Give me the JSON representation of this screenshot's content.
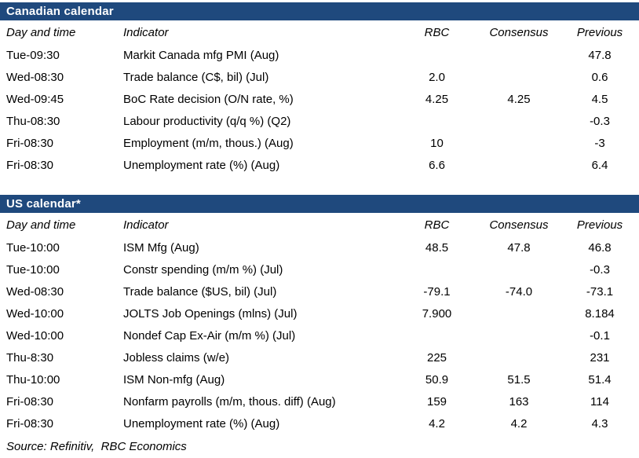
{
  "page": {
    "header_bar_color": "#1f497d",
    "header_bar_text_color": "#ffffff",
    "body_text_color": "#000000",
    "background_color": "#ffffff"
  },
  "sections": [
    {
      "id": "canadian",
      "title": "Canadian calendar",
      "columns": [
        "Day and time",
        "Indicator",
        "RBC",
        "Consensus",
        "Previous"
      ],
      "rows": [
        [
          "Tue-09:30",
          "Markit Canada mfg PMI (Aug)",
          "",
          "",
          "47.8"
        ],
        [
          "Wed-08:30",
          "Trade balance (C$, bil) (Jul)",
          "2.0",
          "",
          "0.6"
        ],
        [
          "Wed-09:45",
          "BoC Rate decision (O/N rate, %)",
          "4.25",
          "4.25",
          "4.5"
        ],
        [
          "Thu-08:30",
          "Labour productivity (q/q %) (Q2)",
          "",
          "",
          "-0.3"
        ],
        [
          "Fri-08:30",
          "Employment (m/m, thous.) (Aug)",
          "10",
          "",
          "-3"
        ],
        [
          "Fri-08:30",
          "Unemployment rate (%) (Aug)",
          "6.6",
          "",
          "6.4"
        ]
      ]
    },
    {
      "id": "us",
      "title": "US calendar*",
      "columns": [
        "Day and time",
        "Indicator",
        "RBC",
        "Consensus",
        "Previous"
      ],
      "rows": [
        [
          "Tue-10:00",
          "ISM Mfg (Aug)",
          "48.5",
          "47.8",
          "46.8"
        ],
        [
          "Tue-10:00",
          "Constr spending (m/m %) (Jul)",
          "",
          "",
          "-0.3"
        ],
        [
          "Wed-08:30",
          "Trade balance ($US, bil) (Jul)",
          "-79.1",
          "-74.0",
          "-73.1"
        ],
        [
          "Wed-10:00",
          "JOLTS Job Openings (mlns) (Jul)",
          "7.900",
          "",
          "8.184"
        ],
        [
          "Wed-10:00",
          "Nondef Cap Ex-Air (m/m %) (Jul)",
          "",
          "",
          "-0.1"
        ],
        [
          "Thu-8:30",
          "Jobless claims (w/e)",
          "225",
          "",
          "231"
        ],
        [
          "Thu-10:00",
          "ISM Non-mfg (Aug)",
          "50.9",
          "51.5",
          "51.4"
        ],
        [
          "Fri-08:30",
          "Nonfarm payrolls (m/m, thous. diff) (Aug)",
          "159",
          "163",
          "114"
        ],
        [
          "Fri-08:30",
          "Unemployment rate (%) (Aug)",
          "4.2",
          "4.2",
          "4.3"
        ]
      ]
    }
  ],
  "footer": {
    "source_text": "Source: Refinitiv,  RBC Economics"
  }
}
